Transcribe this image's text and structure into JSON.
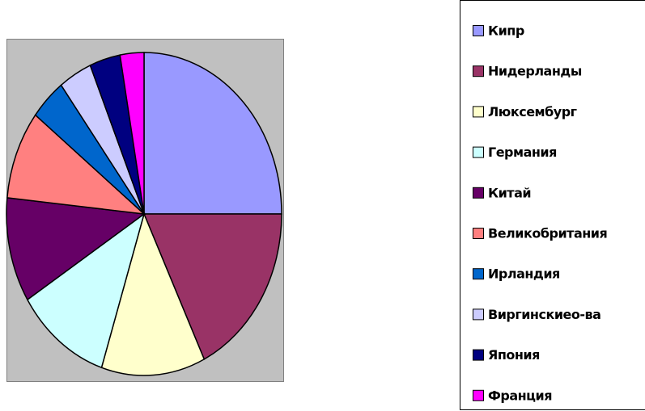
{
  "chart_data": {
    "type": "pie",
    "categories": [
      "Кипр",
      "Нидерланды",
      "Люксембург",
      "Германия",
      "Китай",
      "Великобритания",
      "Ирландия",
      "Виргинскиео-ва",
      "Япония",
      "Франция"
    ],
    "values": [
      25,
      17.8,
      12.2,
      11.1,
      10.5,
      8.9,
      4.2,
      3.9,
      3.6,
      2.8
    ],
    "colors": [
      "#9999ff",
      "#993366",
      "#ffffcc",
      "#ccffff",
      "#660066",
      "#ff8080",
      "#0066cc",
      "#ccccff",
      "#000080",
      "#ff00ff"
    ],
    "legend": "right"
  }
}
